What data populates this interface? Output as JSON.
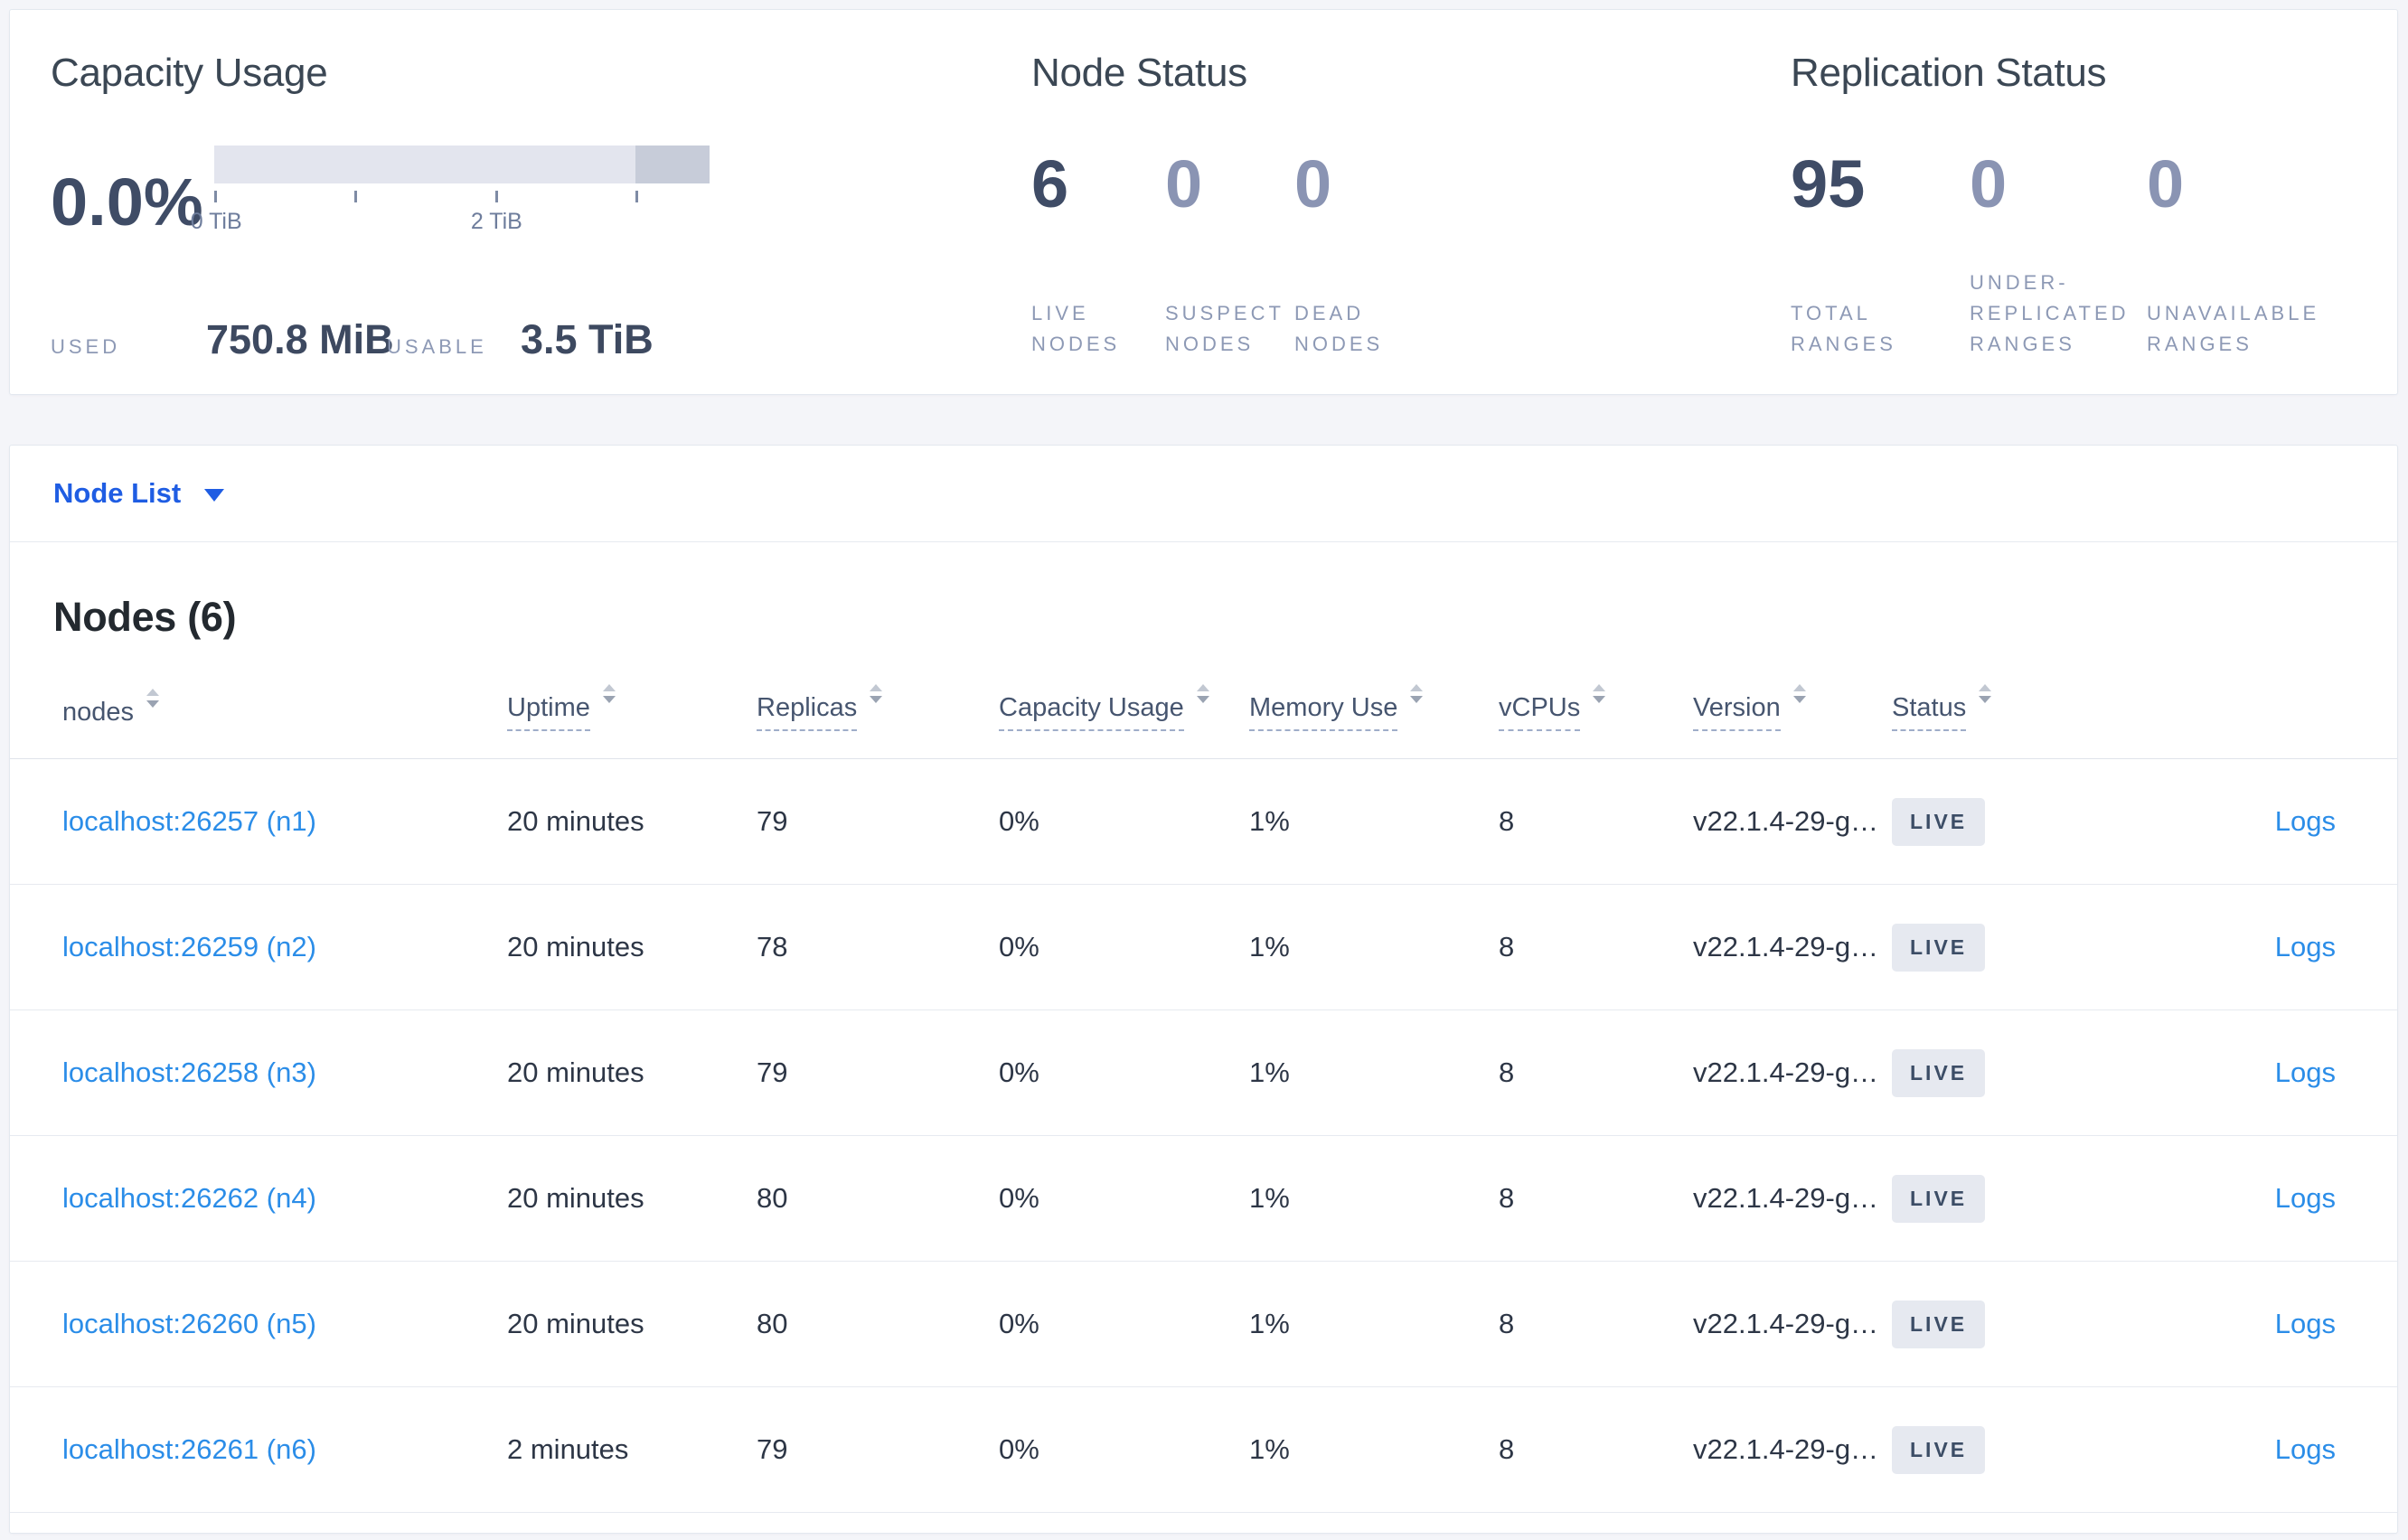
{
  "colors": {
    "page_bg": "#f4f5f9",
    "link_blue": "#2b8de8",
    "nav_blue": "#1f5de3",
    "badge_bg": "#e6e9f0",
    "bar_track": "#e3e5ee",
    "bar_tail": "#c7ccd9"
  },
  "capacity_panel": {
    "title": "Capacity Usage",
    "percent": "0.0%",
    "tick_labels": [
      "0 TiB",
      "2 TiB"
    ],
    "used_label": "USED",
    "used_value": "750.8 MiB",
    "usable_label": "USABLE",
    "usable_value": "3.5 TiB"
  },
  "node_status_panel": {
    "title": "Node Status",
    "stats": [
      {
        "value": "6",
        "label": "LIVE\nNODES",
        "muted": false
      },
      {
        "value": "0",
        "label": "SUSPECT\nNODES",
        "muted": true
      },
      {
        "value": "0",
        "label": "DEAD\nNODES",
        "muted": true
      }
    ]
  },
  "replication_panel": {
    "title": "Replication Status",
    "stats": [
      {
        "value": "95",
        "label": "TOTAL\nRANGES",
        "muted": false
      },
      {
        "value": "0",
        "label": "UNDER-\nREPLICATED\nRANGES",
        "muted": true
      },
      {
        "value": "0",
        "label": "UNAVAILABLE\nRANGES",
        "muted": true
      }
    ]
  },
  "node_list_dropdown": {
    "label": "Node List"
  },
  "nodes_table": {
    "title": "Nodes (6)",
    "columns": [
      {
        "key": "node",
        "label": "nodes",
        "underlined": false,
        "cls": "c-node"
      },
      {
        "key": "uptime",
        "label": "Uptime",
        "underlined": true,
        "cls": "c-uptime"
      },
      {
        "key": "replicas",
        "label": "Replicas",
        "underlined": true,
        "cls": "c-replicas"
      },
      {
        "key": "capacity",
        "label": "Capacity Usage",
        "underlined": true,
        "cls": "c-capacity"
      },
      {
        "key": "memory",
        "label": "Memory Use",
        "underlined": true,
        "cls": "c-memory"
      },
      {
        "key": "vcpus",
        "label": "vCPUs",
        "underlined": true,
        "cls": "c-vcpus"
      },
      {
        "key": "version",
        "label": "Version",
        "underlined": true,
        "cls": "c-version"
      },
      {
        "key": "status",
        "label": "Status",
        "underlined": true,
        "cls": "c-status"
      }
    ],
    "rows": [
      {
        "node": "localhost:26257 (n1)",
        "uptime": "20 minutes",
        "replicas": "79",
        "capacity": "0%",
        "memory": "1%",
        "vcpus": "8",
        "version": "v22.1.4-29-g…",
        "status": "LIVE",
        "logs": "Logs"
      },
      {
        "node": "localhost:26259 (n2)",
        "uptime": "20 minutes",
        "replicas": "78",
        "capacity": "0%",
        "memory": "1%",
        "vcpus": "8",
        "version": "v22.1.4-29-g…",
        "status": "LIVE",
        "logs": "Logs"
      },
      {
        "node": "localhost:26258 (n3)",
        "uptime": "20 minutes",
        "replicas": "79",
        "capacity": "0%",
        "memory": "1%",
        "vcpus": "8",
        "version": "v22.1.4-29-g…",
        "status": "LIVE",
        "logs": "Logs"
      },
      {
        "node": "localhost:26262 (n4)",
        "uptime": "20 minutes",
        "replicas": "80",
        "capacity": "0%",
        "memory": "1%",
        "vcpus": "8",
        "version": "v22.1.4-29-g…",
        "status": "LIVE",
        "logs": "Logs"
      },
      {
        "node": "localhost:26260 (n5)",
        "uptime": "20 minutes",
        "replicas": "80",
        "capacity": "0%",
        "memory": "1%",
        "vcpus": "8",
        "version": "v22.1.4-29-g…",
        "status": "LIVE",
        "logs": "Logs"
      },
      {
        "node": "localhost:26261 (n6)",
        "uptime": "2 minutes",
        "replicas": "79",
        "capacity": "0%",
        "memory": "1%",
        "vcpus": "8",
        "version": "v22.1.4-29-g…",
        "status": "LIVE",
        "logs": "Logs"
      }
    ]
  }
}
